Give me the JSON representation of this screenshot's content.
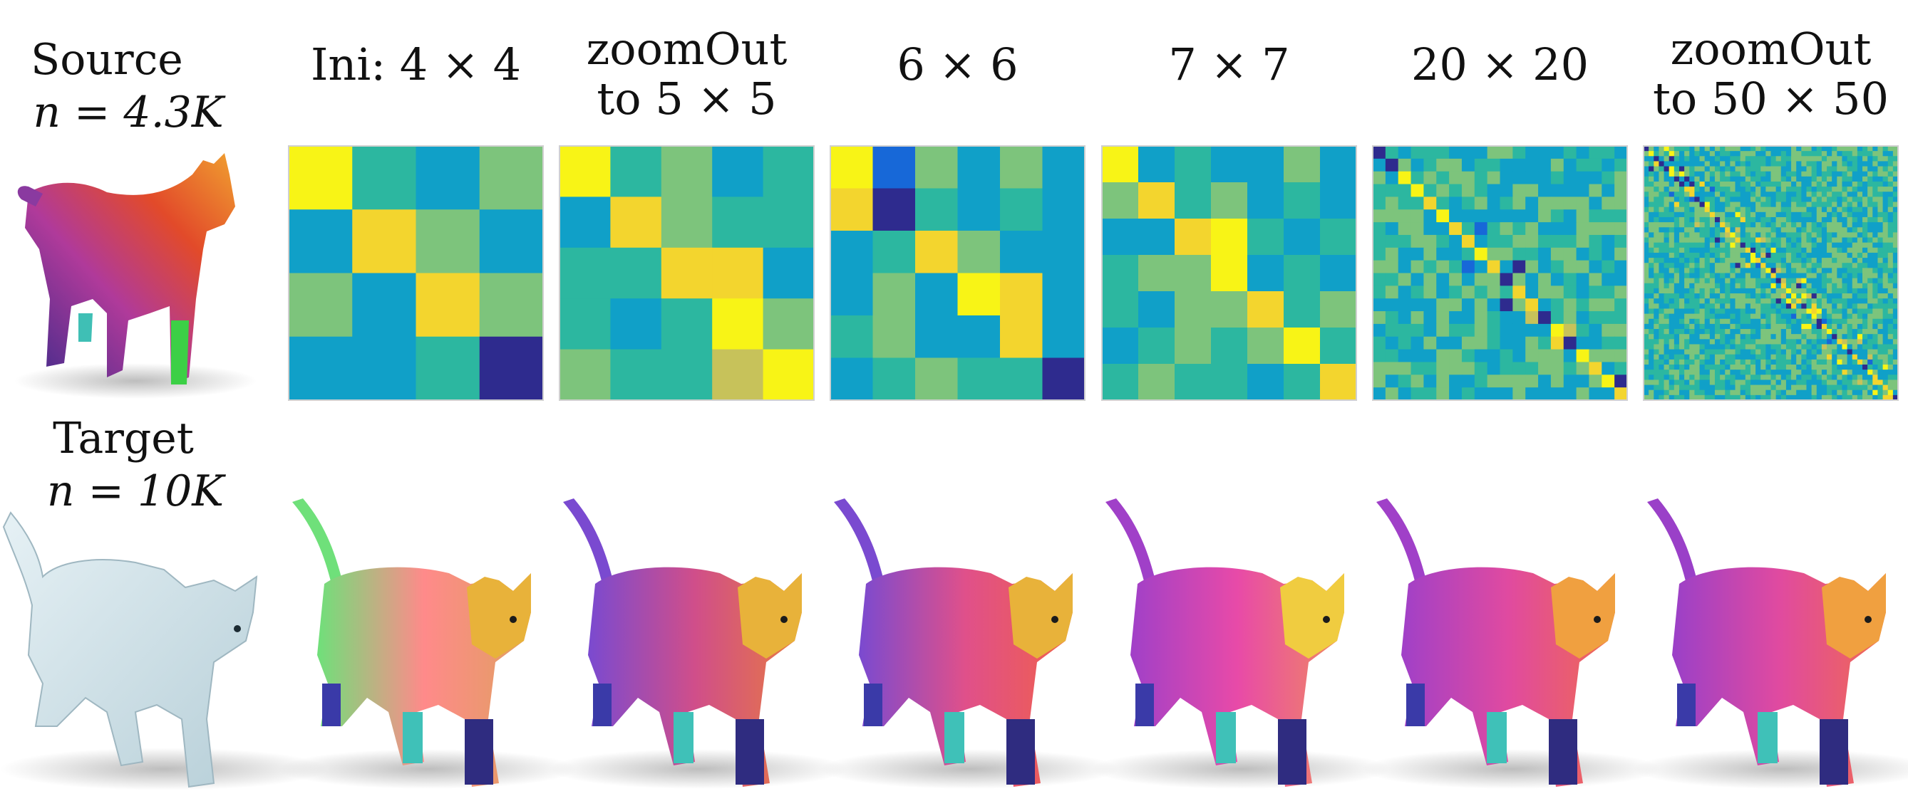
{
  "left_labels": {
    "source_title": "Source",
    "source_n": "n = 4.3K",
    "target_title": "Target",
    "target_n": "n = 10K"
  },
  "columns": [
    {
      "id": "ini4",
      "lines": [
        "Ini: 4 × 4"
      ],
      "size": 4
    },
    {
      "id": "zo5",
      "lines": [
        "zoomOut",
        "to 5 × 5"
      ],
      "size": 5
    },
    {
      "id": "m6",
      "lines": [
        "6 × 6"
      ],
      "size": 6
    },
    {
      "id": "m7",
      "lines": [
        "7 × 7"
      ],
      "size": 7
    },
    {
      "id": "m20",
      "lines": [
        "20 × 20"
      ],
      "size": 20
    },
    {
      "id": "zo50",
      "lines": [
        "zoomOut",
        "to 50 × 50"
      ],
      "size": 50
    }
  ],
  "colormap": [
    "#2e2b8e",
    "#1768d8",
    "#10a0c8",
    "#2cb7a0",
    "#7dc47c",
    "#c7c25a",
    "#f3d52e",
    "#f8f416"
  ],
  "colormap_name": "parula",
  "cat_shading": [
    {
      "body": [
        "#6fe07a",
        "#ff8a8a",
        "#e0a060"
      ],
      "head": "#e8b23a"
    },
    {
      "body": [
        "#7a4ad0",
        "#d04e8a",
        "#e87a40"
      ],
      "head": "#e8b23a"
    },
    {
      "body": [
        "#7a4ad0",
        "#e0508a",
        "#f0604a"
      ],
      "head": "#e8b23a"
    },
    {
      "body": [
        "#a040c8",
        "#e84aa8",
        "#f08a60"
      ],
      "head": "#f0cc40"
    },
    {
      "body": [
        "#a040c8",
        "#e04aa0",
        "#f06a50"
      ],
      "head": "#f0a040"
    },
    {
      "body": [
        "#9a40c8",
        "#e04aa0",
        "#f06a50"
      ],
      "head": "#f0a040"
    }
  ]
}
